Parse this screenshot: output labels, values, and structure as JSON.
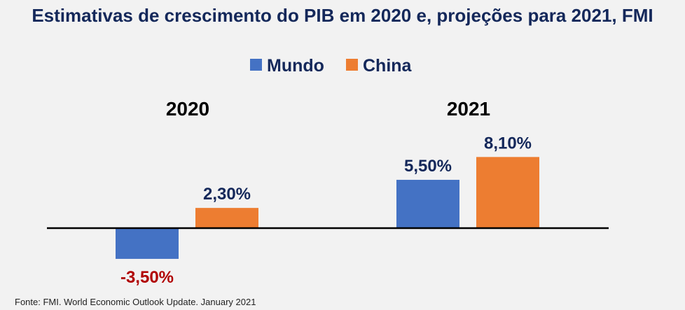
{
  "chart_data": {
    "type": "bar",
    "title": "Estimativas de crescimento do PIB em 2020 e, projeções para 2021,  FMI",
    "categories": [
      "2020",
      "2021"
    ],
    "series": [
      {
        "name": "Mundo",
        "values": [
          -3.5,
          5.5
        ],
        "labels": [
          "-3,50%",
          "5,50%"
        ],
        "color": "#4472c4"
      },
      {
        "name": "China",
        "values": [
          2.3,
          8.1
        ],
        "labels": [
          "2,30%",
          "8,10%"
        ],
        "color": "#ed7d31"
      }
    ],
    "negative_label_color": "#b00000",
    "positive_label_color": "#14285a",
    "legend": "top-center",
    "grid": false,
    "source": "Fonte: FMI. World Economic Outlook Update. January 2021"
  }
}
